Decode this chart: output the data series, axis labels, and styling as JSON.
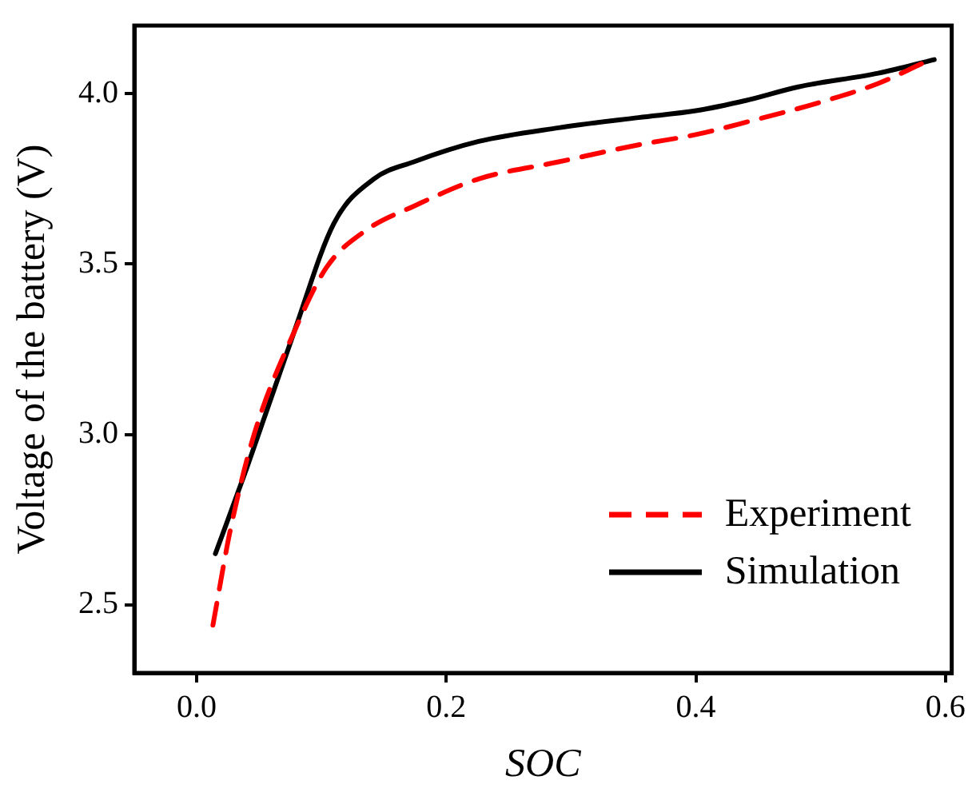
{
  "chart_data": {
    "type": "line",
    "xlabel": "SOC",
    "ylabel": "Voltage of the battery (V)",
    "xlim": [
      -0.05,
      0.605
    ],
    "xticks": [
      {
        "value": 0,
        "label": "0.0"
      },
      0.2,
      0.4,
      0.6
    ],
    "ylim": [
      2.3,
      4.2
    ],
    "yticks": [
      2.5,
      {
        "value": 3,
        "label": "3.0"
      },
      3.5,
      {
        "value": 4,
        "label": "4.0"
      }
    ],
    "legend": "bottom right",
    "marker": "none",
    "grid": false,
    "series": [
      {
        "name": "Experiment",
        "color": "#ff0000",
        "line_style": "dashed",
        "x": [
          0.013,
          0.027,
          0.046,
          0.078,
          0.104,
          0.136,
          0.174,
          0.226,
          0.29,
          0.354,
          0.4,
          0.444,
          0.495,
          0.546,
          0.582
        ],
        "values": [
          2.44,
          2.72,
          3.0,
          3.3,
          3.49,
          3.6,
          3.67,
          3.75,
          3.8,
          3.85,
          3.88,
          3.92,
          3.97,
          4.03,
          4.09
        ]
      },
      {
        "name": "Simulation",
        "color": "#000000",
        "line_style": "solid",
        "x": [
          0.015,
          0.04,
          0.078,
          0.11,
          0.142,
          0.174,
          0.226,
          0.29,
          0.354,
          0.4,
          0.44,
          0.482,
          0.546,
          0.591
        ],
        "values": [
          2.65,
          2.9,
          3.3,
          3.62,
          3.75,
          3.8,
          3.86,
          3.9,
          3.93,
          3.95,
          3.98,
          4.02,
          4.06,
          4.1
        ]
      }
    ]
  }
}
